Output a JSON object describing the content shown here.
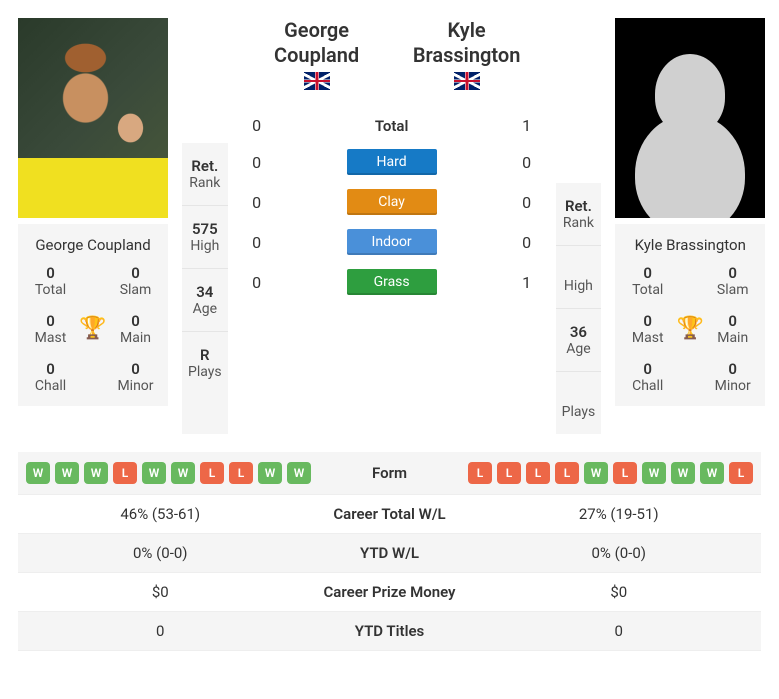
{
  "player1": {
    "name": "George Coupland",
    "flag": "gb",
    "titles": {
      "total": {
        "value": "0",
        "label": "Total"
      },
      "slam": {
        "value": "0",
        "label": "Slam"
      },
      "mast": {
        "value": "0",
        "label": "Mast"
      },
      "main": {
        "value": "0",
        "label": "Main"
      },
      "chall": {
        "value": "0",
        "label": "Chall"
      },
      "minor": {
        "value": "0",
        "label": "Minor"
      }
    },
    "stats": {
      "rank": {
        "value": "Ret.",
        "label": "Rank"
      },
      "high": {
        "value": "575",
        "label": "High"
      },
      "age": {
        "value": "34",
        "label": "Age"
      },
      "plays": {
        "value": "R",
        "label": "Plays"
      }
    },
    "form": [
      "W",
      "W",
      "W",
      "L",
      "W",
      "W",
      "L",
      "L",
      "W",
      "W"
    ],
    "career_wl": "46% (53-61)",
    "ytd_wl": "0% (0-0)",
    "prize": "$0",
    "ytd_titles": "0"
  },
  "player2": {
    "name": "Kyle Brassington",
    "flag": "gb",
    "titles": {
      "total": {
        "value": "0",
        "label": "Total"
      },
      "slam": {
        "value": "0",
        "label": "Slam"
      },
      "mast": {
        "value": "0",
        "label": "Mast"
      },
      "main": {
        "value": "0",
        "label": "Main"
      },
      "chall": {
        "value": "0",
        "label": "Chall"
      },
      "minor": {
        "value": "0",
        "label": "Minor"
      }
    },
    "stats": {
      "rank": {
        "value": "Ret.",
        "label": "Rank"
      },
      "high": {
        "value": "",
        "label": "High"
      },
      "age": {
        "value": "36",
        "label": "Age"
      },
      "plays": {
        "value": "",
        "label": "Plays"
      }
    },
    "form": [
      "L",
      "L",
      "L",
      "L",
      "W",
      "L",
      "W",
      "W",
      "W",
      "L"
    ],
    "career_wl": "27% (19-51)",
    "ytd_wl": "0% (0-0)",
    "prize": "$0",
    "ytd_titles": "0"
  },
  "h2h": {
    "total": {
      "p1": "0",
      "p2": "1",
      "label": "Total"
    },
    "hard": {
      "p1": "0",
      "p2": "0",
      "label": "Hard",
      "color": "#167ac6"
    },
    "clay": {
      "p1": "0",
      "p2": "0",
      "label": "Clay",
      "color": "#e28b14"
    },
    "indoor": {
      "p1": "0",
      "p2": "0",
      "label": "Indoor",
      "color": "#4a90d9"
    },
    "grass": {
      "p1": "0",
      "p2": "1",
      "label": "Grass",
      "color": "#2e9e3f"
    }
  },
  "table_labels": {
    "form": "Form",
    "career_wl": "Career Total W/L",
    "ytd_wl": "YTD W/L",
    "prize": "Career Prize Money",
    "ytd_titles": "YTD Titles"
  },
  "name_parts": {
    "p1_first": "George",
    "p1_last": "Coupland",
    "p2_first": "Kyle",
    "p2_last": "Brassington"
  }
}
